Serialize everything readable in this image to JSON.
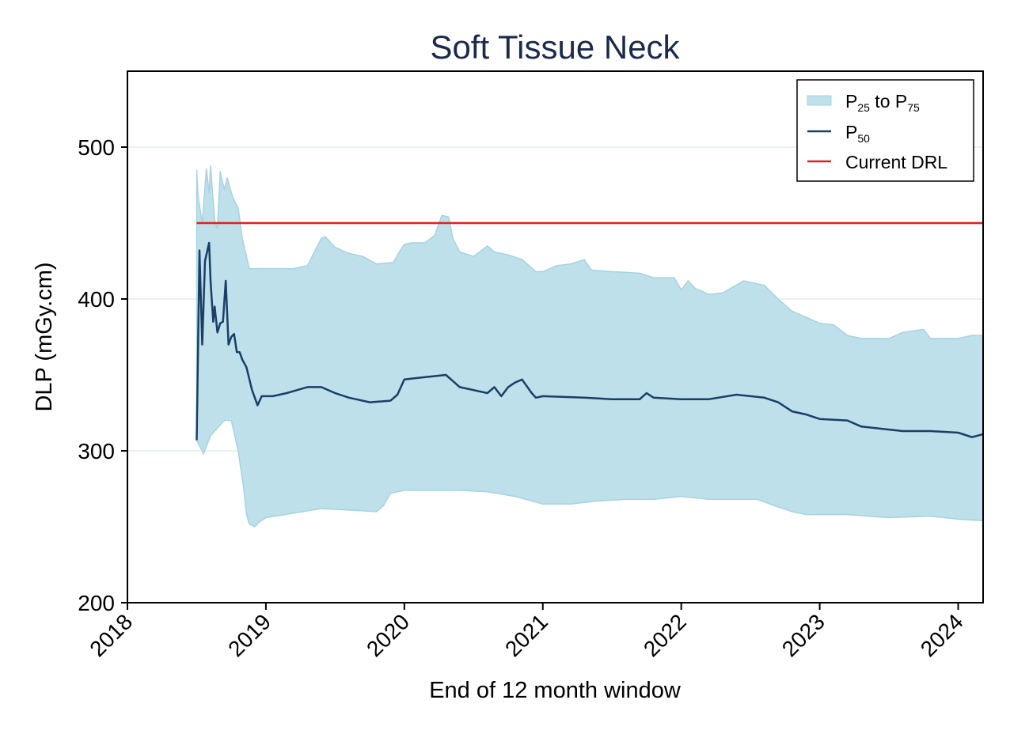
{
  "chart_data": {
    "type": "area",
    "title": "Soft Tissue Neck",
    "xlabel": "End of 12 month window",
    "ylabel": "DLP (mGy.cm)",
    "xlim": [
      2018.0,
      2024.18
    ],
    "ylim": [
      200,
      550
    ],
    "yticks": [
      200,
      300,
      400,
      500
    ],
    "xticks": [
      2018,
      2019,
      2020,
      2021,
      2022,
      2023,
      2024
    ],
    "ytick_labels": [
      "200",
      "300",
      "400",
      "500"
    ],
    "xtick_labels": [
      "2018",
      "2019",
      "2020",
      "2021",
      "2022",
      "2023",
      "2024"
    ],
    "legend": {
      "position": "top-right",
      "band": {
        "main": "P",
        "sub1": "25",
        "mid": " to P",
        "sub2": "75"
      },
      "median": {
        "main": "P",
        "sub": "50"
      },
      "drl": {
        "label": "Current DRL"
      }
    },
    "colors": {
      "band": "#bde0ea",
      "band_edge": "#a9d3e0",
      "median": "#1a3e66",
      "drl": "#e0201b",
      "grid": "#e8f2f4",
      "title": "#1b2a4a"
    },
    "drl_value": 450,
    "series": [
      {
        "name": "P75",
        "x": [
          2018.5,
          2018.51,
          2018.54,
          2018.57,
          2018.59,
          2018.6,
          2018.63,
          2018.65,
          2018.67,
          2018.7,
          2018.72,
          2018.75,
          2018.77,
          2018.8,
          2018.83,
          2018.86,
          2018.88,
          2018.92,
          2018.95,
          2019.0,
          2019.2,
          2019.3,
          2019.4,
          2019.43,
          2019.5,
          2019.6,
          2019.7,
          2019.8,
          2019.92,
          2019.97,
          2020.0,
          2020.05,
          2020.15,
          2020.22,
          2020.27,
          2020.32,
          2020.35,
          2020.4,
          2020.5,
          2020.6,
          2020.65,
          2020.75,
          2020.85,
          2020.95,
          2021.0,
          2021.1,
          2021.2,
          2021.3,
          2021.35,
          2021.5,
          2021.7,
          2021.8,
          2021.95,
          2022.0,
          2022.05,
          2022.1,
          2022.2,
          2022.3,
          2022.45,
          2022.6,
          2022.7,
          2022.8,
          2022.85,
          2023.0,
          2023.1,
          2023.2,
          2023.3,
          2023.5,
          2023.6,
          2023.75,
          2023.8,
          2024.0,
          2024.1,
          2024.18
        ],
        "values": [
          485,
          468,
          450,
          486,
          470,
          488,
          452,
          446,
          484,
          472,
          480,
          470,
          465,
          460,
          440,
          428,
          420,
          420,
          420,
          420,
          420,
          422,
          440,
          441,
          434,
          430,
          428,
          423,
          424,
          432,
          436,
          437,
          437,
          442,
          455,
          454,
          440,
          431,
          428,
          435,
          431,
          429,
          426,
          418,
          418,
          422,
          423,
          426,
          419,
          418,
          417,
          414,
          414,
          406,
          412,
          407,
          403,
          404,
          412,
          409,
          400,
          392,
          390,
          384,
          383,
          376,
          374,
          374,
          378,
          380,
          374,
          374,
          376,
          376
        ]
      },
      {
        "name": "P50",
        "x": [
          2018.5,
          2018.52,
          2018.54,
          2018.56,
          2018.59,
          2018.6,
          2018.62,
          2018.63,
          2018.65,
          2018.67,
          2018.69,
          2018.71,
          2018.73,
          2018.75,
          2018.77,
          2018.79,
          2018.81,
          2018.83,
          2018.86,
          2018.9,
          2018.94,
          2018.97,
          2019.0,
          2019.05,
          2019.15,
          2019.3,
          2019.4,
          2019.5,
          2019.6,
          2019.65,
          2019.75,
          2019.9,
          2019.95,
          2020.0,
          2020.1,
          2020.2,
          2020.3,
          2020.35,
          2020.4,
          2020.5,
          2020.6,
          2020.65,
          2020.7,
          2020.75,
          2020.8,
          2020.85,
          2020.92,
          2020.95,
          2021.0,
          2021.3,
          2021.5,
          2021.7,
          2021.75,
          2021.8,
          2022.0,
          2022.2,
          2022.4,
          2022.6,
          2022.7,
          2022.8,
          2022.9,
          2023.0,
          2023.2,
          2023.3,
          2023.5,
          2023.6,
          2023.8,
          2024.0,
          2024.1,
          2024.18
        ],
        "values": [
          307,
          432,
          370,
          425,
          437,
          412,
          385,
          395,
          378,
          384,
          385,
          412,
          370,
          375,
          377,
          365,
          365,
          360,
          355,
          340,
          330,
          336,
          336,
          336,
          338,
          342,
          342,
          338,
          335,
          334,
          332,
          333,
          337,
          347,
          348,
          349,
          350,
          346,
          342,
          340,
          338,
          342,
          336,
          342,
          345,
          347,
          338,
          335,
          336,
          335,
          334,
          334,
          338,
          335,
          334,
          334,
          337,
          335,
          332,
          326,
          324,
          321,
          320,
          316,
          314,
          313,
          313,
          312,
          309,
          311
        ]
      },
      {
        "name": "P25",
        "x": [
          2018.5,
          2018.55,
          2018.6,
          2018.65,
          2018.7,
          2018.73,
          2018.75,
          2018.77,
          2018.8,
          2018.84,
          2018.86,
          2018.88,
          2018.92,
          2018.95,
          2019.0,
          2019.2,
          2019.4,
          2019.6,
          2019.8,
          2019.85,
          2019.9,
          2020.0,
          2020.2,
          2020.4,
          2020.6,
          2020.8,
          2021.0,
          2021.2,
          2021.4,
          2021.6,
          2021.8,
          2022.0,
          2022.2,
          2022.4,
          2022.55,
          2022.7,
          2022.8,
          2022.9,
          2023.0,
          2023.2,
          2023.5,
          2023.8,
          2024.0,
          2024.18
        ],
        "values": [
          307,
          298,
          310,
          315,
          320,
          320,
          320,
          312,
          300,
          275,
          258,
          252,
          250,
          253,
          256,
          259,
          262,
          261,
          260,
          264,
          272,
          274,
          274,
          274,
          273,
          270,
          265,
          265,
          267,
          268,
          268,
          270,
          268,
          268,
          268,
          263,
          260,
          258,
          258,
          258,
          256,
          257,
          255,
          254
        ]
      }
    ]
  }
}
